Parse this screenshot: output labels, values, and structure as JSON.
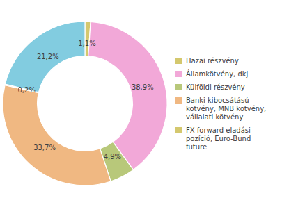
{
  "chart_data": {
    "type": "pie",
    "donut": true,
    "values": [
      1.1,
      38.9,
      4.9,
      33.7,
      0.2,
      21.2
    ],
    "value_labels": [
      "1,1%",
      "38,9%",
      "4,9%",
      "33,7%",
      "0,2%",
      "21,2%"
    ],
    "colors": [
      "#d4c86e",
      "#f2a8d8",
      "#b8c87a",
      "#f0b882",
      "#f0b882",
      "#82cce0"
    ],
    "data_labels": true,
    "legend_items": [
      {
        "name": "Hazai részvény",
        "color": "#d4c86e"
      },
      {
        "name": "Államkötvény, dkj",
        "color": "#f2a8d8"
      },
      {
        "name": "Külföldi részvény",
        "color": "#b8c87a"
      },
      {
        "name": "Banki kibocsátású\nkötvény, MNB kötvény,\nvállalati kötvény",
        "color": "#f0b882"
      },
      {
        "name": "FX forward eladási\npozíció, Euro-Bund\nfuture",
        "color": "#d4c86e"
      }
    ]
  }
}
